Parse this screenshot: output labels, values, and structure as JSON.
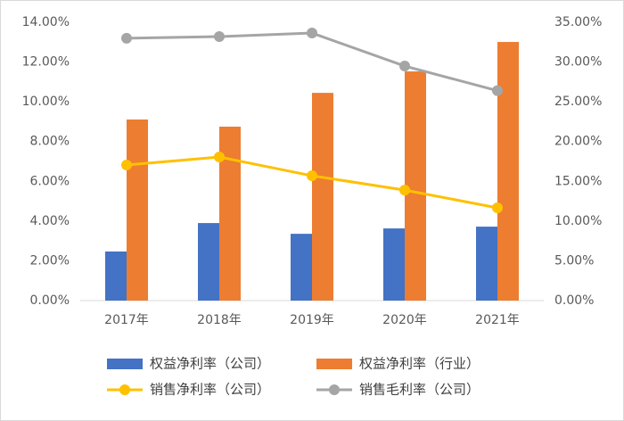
{
  "chart_data": {
    "type": "combo",
    "categories": [
      "2017年",
      "2018年",
      "2019年",
      "2020年",
      "2021年"
    ],
    "ylim": [
      0,
      14
    ],
    "yticks": [
      {
        "value": 0,
        "label": "0.00%"
      },
      {
        "value": 2,
        "label": "2.00%"
      },
      {
        "value": 4,
        "label": "4.00%"
      },
      {
        "value": 6,
        "label": "6.00%"
      },
      {
        "value": 8,
        "label": "8.00%"
      },
      {
        "value": 10,
        "label": "10.00%"
      },
      {
        "value": 12,
        "label": "12.00%"
      },
      {
        "value": 14,
        "label": "14.00%"
      }
    ],
    "y2lim": [
      0,
      35
    ],
    "y2ticks": [
      {
        "value": 0,
        "label": "0.00%"
      },
      {
        "value": 5,
        "label": "5.00%"
      },
      {
        "value": 10,
        "label": "10.00%"
      },
      {
        "value": 15,
        "label": "15.00%"
      },
      {
        "value": 20,
        "label": "20.00%"
      },
      {
        "value": 25,
        "label": "25.00%"
      },
      {
        "value": 30,
        "label": "30.00%"
      },
      {
        "value": 35,
        "label": "35.00%"
      }
    ],
    "series": [
      {
        "name": "权益净利率（公司）",
        "type": "bar",
        "color": "#4472c4",
        "values": [
          2.47,
          3.9,
          3.36,
          3.63,
          3.72
        ]
      },
      {
        "name": "权益净利率（行业）",
        "type": "bar",
        "color": "#ed7d31",
        "values": [
          9.11,
          8.75,
          10.45,
          11.53,
          13.01
        ]
      },
      {
        "name": "销售净利率（公司）",
        "type": "line",
        "axis": "y2",
        "color": "#ffc000",
        "values": [
          17.05,
          18.06,
          15.7,
          13.9,
          11.67
        ]
      },
      {
        "name": "销售毛利率（公司）",
        "type": "line",
        "axis": "y2",
        "color": "#a5a5a5",
        "values": [
          33.0,
          33.2,
          33.65,
          29.5,
          26.4
        ]
      }
    ]
  }
}
